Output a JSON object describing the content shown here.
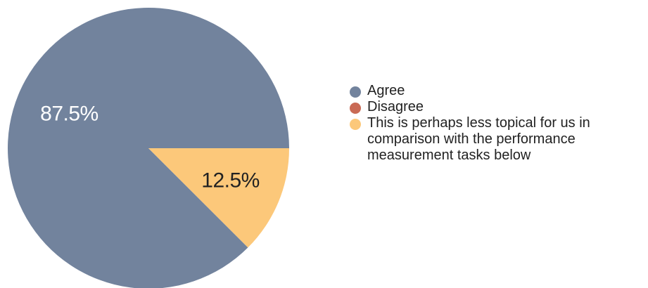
{
  "chart_data": {
    "type": "pie",
    "title": "",
    "slices": [
      {
        "name": "Agree",
        "value": 87.5,
        "label": "87.5%",
        "color": "#72839d",
        "label_color": "#ffffff"
      },
      {
        "name": "Disagree",
        "value": 0,
        "label": "",
        "color": "#c96a55",
        "label_color": "#222222"
      },
      {
        "name": "This is perhaps less topical for us in comparison with the performance measurement tasks below",
        "value": 12.5,
        "label": "12.5%",
        "color": "#fcc87a",
        "label_color": "#222222"
      }
    ],
    "legend": {
      "position": "right",
      "items": [
        {
          "label": "Agree",
          "color": "#72839d"
        },
        {
          "label": "Disagree",
          "color": "#c96a55"
        },
        {
          "label": "This is perhaps less topical for us in comparison with the performance measurement tasks below",
          "color": "#fcc87a"
        }
      ]
    }
  }
}
